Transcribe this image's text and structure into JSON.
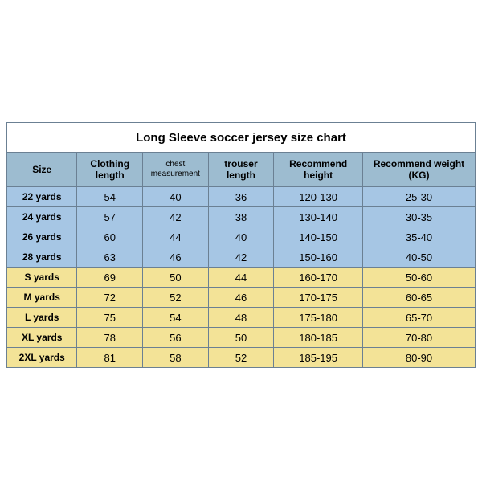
{
  "table": {
    "title": "Long Sleeve soccer jersey size chart",
    "columns": [
      {
        "label": "Size",
        "width": 15
      },
      {
        "label": "Clothing length",
        "width": 14
      },
      {
        "label": "chest measurement",
        "width": 14,
        "small": true
      },
      {
        "label": "trouser length",
        "width": 14
      },
      {
        "label": "Recommend height",
        "width": 19
      },
      {
        "label": "Recommend weight (KG)",
        "width": 24
      }
    ],
    "header_row_color": "#9dbcd0",
    "border_color": "#6b8093",
    "groups": [
      {
        "row_color": "#a6c6e4",
        "rows": [
          {
            "size": "22 yards",
            "vals": [
              "54",
              "40",
              "36",
              "120-130",
              "25-30"
            ]
          },
          {
            "size": "24 yards",
            "vals": [
              "57",
              "42",
              "38",
              "130-140",
              "30-35"
            ]
          },
          {
            "size": "26 yards",
            "vals": [
              "60",
              "44",
              "40",
              "140-150",
              "35-40"
            ]
          },
          {
            "size": "28 yards",
            "vals": [
              "63",
              "46",
              "42",
              "150-160",
              "40-50"
            ]
          }
        ]
      },
      {
        "row_color": "#f3e397",
        "rows": [
          {
            "size": "S yards",
            "vals": [
              "69",
              "50",
              "44",
              "160-170",
              "50-60"
            ]
          },
          {
            "size": "M yards",
            "vals": [
              "72",
              "52",
              "46",
              "170-175",
              "60-65"
            ]
          },
          {
            "size": "L yards",
            "vals": [
              "75",
              "54",
              "48",
              "175-180",
              "65-70"
            ]
          },
          {
            "size": "XL yards",
            "vals": [
              "78",
              "56",
              "50",
              "180-185",
              "70-80"
            ]
          },
          {
            "size": "2XL yards",
            "vals": [
              "81",
              "58",
              "52",
              "185-195",
              "80-90"
            ]
          }
        ]
      }
    ]
  }
}
